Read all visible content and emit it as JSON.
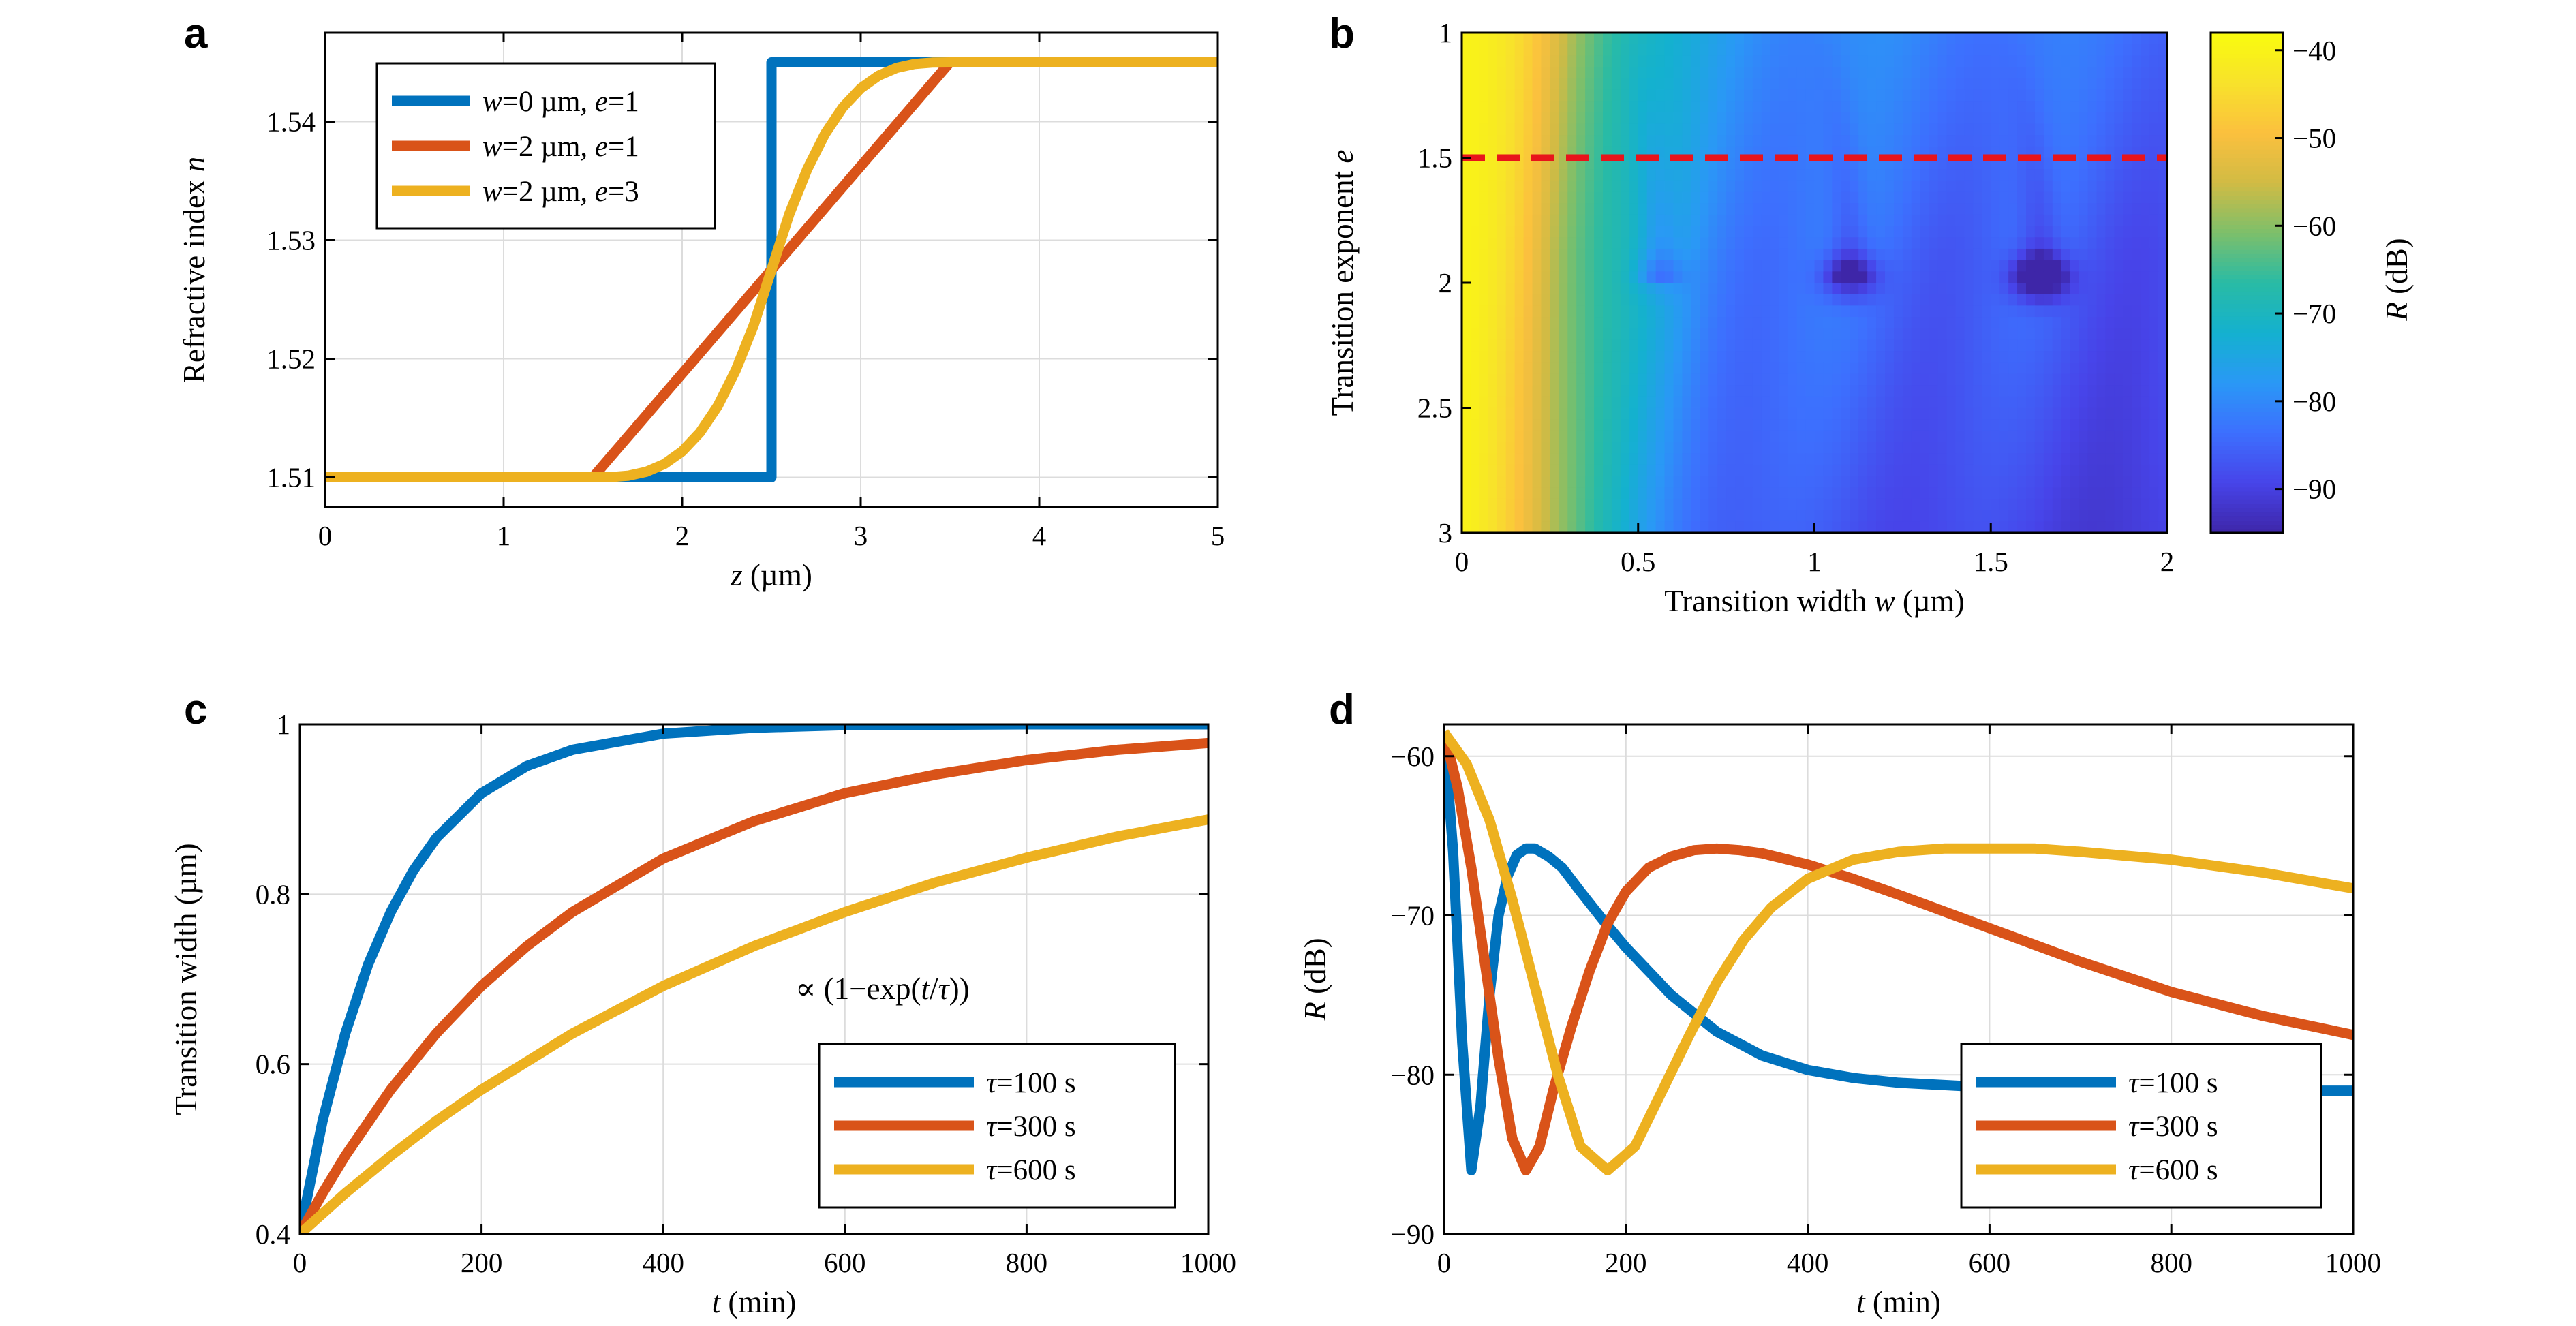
{
  "chart_data": [
    {
      "panel": "a",
      "type": "line",
      "xlabel": {
        "italic": "z",
        "rest": " (µm)"
      },
      "ylabel": {
        "rest": "Refractive index ",
        "italic": "n"
      },
      "xlim": [
        0,
        5
      ],
      "ylim": [
        1.5075,
        1.5475
      ],
      "xticks": [
        0,
        1,
        2,
        3,
        4,
        5
      ],
      "yticks": [
        1.51,
        1.52,
        1.53,
        1.54
      ],
      "grid": true,
      "legend_position": "top-left",
      "series": [
        {
          "legend": [
            {
              "t": "w",
              "i": true
            },
            {
              "t": "=0 µm, "
            },
            {
              "t": "e",
              "i": true
            },
            {
              "t": "=1"
            }
          ],
          "color": "#0072BD",
          "x": [
            0,
            2.5,
            2.5,
            5
          ],
          "y": [
            1.51,
            1.51,
            1.545,
            1.545
          ]
        },
        {
          "legend": [
            {
              "t": "w",
              "i": true
            },
            {
              "t": "=2 µm, "
            },
            {
              "t": "e",
              "i": true
            },
            {
              "t": "=1"
            }
          ],
          "color": "#D95319",
          "x": [
            0,
            1.5,
            3.5,
            5
          ],
          "y": [
            1.51,
            1.51,
            1.545,
            1.545
          ]
        },
        {
          "legend": [
            {
              "t": "w",
              "i": true
            },
            {
              "t": "=2 µm, "
            },
            {
              "t": "e",
              "i": true
            },
            {
              "t": "=3"
            }
          ],
          "color": "#EDB120",
          "x": [
            0,
            1.5,
            1.6,
            1.7,
            1.8,
            1.9,
            2.0,
            2.1,
            2.2,
            2.3,
            2.4,
            2.5,
            2.6,
            2.7,
            2.8,
            2.9,
            3.0,
            3.1,
            3.2,
            3.3,
            3.4,
            3.5,
            5
          ],
          "y": [
            1.51,
            1.51,
            1.51002,
            1.51014,
            1.51047,
            1.51112,
            1.51219,
            1.51379,
            1.51603,
            1.51903,
            1.5228,
            1.5275,
            1.5322,
            1.53597,
            1.53897,
            1.54121,
            1.54281,
            1.54388,
            1.54453,
            1.54486,
            1.54498,
            1.545,
            1.545
          ]
        }
      ]
    },
    {
      "panel": "b",
      "type": "heatmap",
      "xlabel": {
        "rest": "Transition width ",
        "italic": "w",
        "rest2": " (µm)"
      },
      "ylabel": {
        "rest": "Transition exponent ",
        "italic": "e"
      },
      "xlim": [
        0,
        2
      ],
      "ylim": [
        1,
        3
      ],
      "xticks": [
        0,
        0.5,
        1,
        1.5,
        2
      ],
      "xtick_labels": [
        "0",
        "0.5",
        "1",
        "1.5",
        "2"
      ],
      "yticks": [
        1,
        1.5,
        2,
        2.5,
        3
      ],
      "ytick_labels": [
        "1",
        "1.5",
        "2",
        "2.5",
        "3"
      ],
      "y_reversed": true,
      "colorbar": {
        "label": {
          "italic": "R",
          "rest": " (dB)"
        },
        "range": [
          -95,
          -38
        ],
        "ticks": [
          -40,
          -50,
          -60,
          -70,
          -80,
          -90
        ],
        "tick_labels": [
          "−40",
          "−50",
          "−60",
          "−70",
          "−80",
          "−90"
        ],
        "colormap": [
          "#3E26A8",
          "#4744E9",
          "#3D6FFE",
          "#2A98F6",
          "#14B1CF",
          "#29BBA5",
          "#7CBF6B",
          "#D1BB44",
          "#FBC03E",
          "#F8E22B",
          "#F9FB0E"
        ]
      },
      "minima": [
        {
          "w": 0.56,
          "e": 1.98,
          "R": -80
        },
        {
          "w": 1.1,
          "e": 1.98,
          "R": -88
        },
        {
          "w": 1.64,
          "e": 1.98,
          "R": -93
        }
      ],
      "dashed_line": {
        "e": 1.5,
        "color": "#E8141B"
      }
    },
    {
      "panel": "c",
      "type": "line",
      "xlabel": {
        "italic": "t",
        "rest": " (min)"
      },
      "ylabel": {
        "rest": "Transition width (µm)"
      },
      "xlim": [
        0,
        1000
      ],
      "ylim": [
        0.4,
        1
      ],
      "xticks": [
        0,
        200,
        400,
        600,
        800,
        1000
      ],
      "yticks": [
        0.4,
        0.6,
        0.8,
        1
      ],
      "ytick_labels": [
        "0.4",
        "0.6",
        "0.8",
        "1"
      ],
      "grid": true,
      "legend_position": "bottom-right",
      "annotation": [
        {
          "t": "∝ (1−exp("
        },
        {
          "t": "t",
          "i": true
        },
        {
          "t": "/"
        },
        {
          "t": "τ",
          "i": true
        },
        {
          "t": "))"
        }
      ],
      "series": [
        {
          "legend": [
            {
              "t": "τ",
              "i": true
            },
            {
              "t": "=100 s"
            }
          ],
          "color": "#0072BD",
          "x": [
            0,
            25,
            50,
            75,
            100,
            125,
            150,
            200,
            250,
            300,
            400,
            500,
            600,
            800,
            1000
          ],
          "y": [
            0.4,
            0.533,
            0.636,
            0.717,
            0.779,
            0.828,
            0.866,
            0.919,
            0.951,
            0.97,
            0.989,
            0.996,
            0.999,
            1.0,
            1.0
          ]
        },
        {
          "legend": [
            {
              "t": "τ",
              "i": true
            },
            {
              "t": "=300 s"
            }
          ],
          "color": "#D95319",
          "x": [
            0,
            25,
            50,
            100,
            150,
            200,
            250,
            300,
            400,
            500,
            600,
            700,
            800,
            900,
            1000
          ],
          "y": [
            0.4,
            0.448,
            0.492,
            0.57,
            0.636,
            0.692,
            0.739,
            0.779,
            0.842,
            0.886,
            0.919,
            0.941,
            0.958,
            0.97,
            0.978
          ]
        },
        {
          "legend": [
            {
              "t": "τ",
              "i": true
            },
            {
              "t": "=600 s"
            }
          ],
          "color": "#EDB120",
          "x": [
            0,
            50,
            100,
            150,
            200,
            300,
            400,
            500,
            600,
            700,
            800,
            900,
            1000
          ],
          "y": [
            0.4,
            0.448,
            0.492,
            0.533,
            0.57,
            0.636,
            0.692,
            0.739,
            0.779,
            0.814,
            0.843,
            0.868,
            0.888
          ]
        }
      ]
    },
    {
      "panel": "d",
      "type": "line",
      "xlabel": {
        "italic": "t",
        "rest": " (min)"
      },
      "ylabel": {
        "italic": "R",
        "rest": " (dB)"
      },
      "xlim": [
        0,
        1000
      ],
      "ylim": [
        -90,
        -58
      ],
      "xticks": [
        0,
        200,
        400,
        600,
        800,
        1000
      ],
      "yticks": [
        -60,
        -70,
        -80,
        -90
      ],
      "ytick_labels": [
        "−60",
        "−70",
        "−80",
        "−90"
      ],
      "grid": true,
      "legend_position": "bottom-right",
      "series": [
        {
          "legend": [
            {
              "t": "τ",
              "i": true
            },
            {
              "t": "=100 s"
            }
          ],
          "color": "#0072BD",
          "x": [
            0,
            10,
            20,
            30,
            40,
            50,
            60,
            70,
            80,
            90,
            100,
            115,
            130,
            150,
            175,
            200,
            250,
            300,
            350,
            400,
            450,
            500,
            600,
            700,
            800,
            900,
            1000
          ],
          "y": [
            -58.5,
            -66,
            -78,
            -86,
            -82,
            -75,
            -70,
            -67.5,
            -66.2,
            -65.8,
            -65.8,
            -66.3,
            -67,
            -68.5,
            -70.3,
            -72,
            -75,
            -77.3,
            -78.8,
            -79.7,
            -80.2,
            -80.5,
            -80.8,
            -81,
            -81,
            -81,
            -81
          ]
        },
        {
          "legend": [
            {
              "t": "τ",
              "i": true
            },
            {
              "t": "=300 s"
            }
          ],
          "color": "#D95319",
          "x": [
            0,
            15,
            30,
            45,
            60,
            75,
            90,
            105,
            120,
            140,
            160,
            180,
            200,
            225,
            250,
            275,
            300,
            325,
            350,
            400,
            450,
            500,
            600,
            700,
            800,
            900,
            1000
          ],
          "y": [
            -58.5,
            -62,
            -67,
            -73,
            -79,
            -84,
            -86,
            -84.5,
            -81,
            -77,
            -73.5,
            -70.5,
            -68.5,
            -67,
            -66.3,
            -65.9,
            -65.8,
            -65.9,
            -66.1,
            -66.8,
            -67.7,
            -68.7,
            -70.8,
            -72.9,
            -74.8,
            -76.3,
            -77.5
          ]
        },
        {
          "legend": [
            {
              "t": "τ",
              "i": true
            },
            {
              "t": "=600 s"
            }
          ],
          "color": "#EDB120",
          "x": [
            0,
            25,
            50,
            75,
            100,
            125,
            150,
            180,
            210,
            240,
            270,
            300,
            330,
            360,
            400,
            450,
            500,
            550,
            600,
            650,
            700,
            800,
            900,
            1000
          ],
          "y": [
            -58.5,
            -60.5,
            -64,
            -69,
            -74.5,
            -80,
            -84.5,
            -86,
            -84.5,
            -81,
            -77.5,
            -74.2,
            -71.5,
            -69.5,
            -67.7,
            -66.5,
            -66,
            -65.8,
            -65.8,
            -65.8,
            -66,
            -66.5,
            -67.3,
            -68.3
          ]
        }
      ]
    }
  ],
  "panel_labels": [
    "a",
    "b",
    "c",
    "d"
  ]
}
